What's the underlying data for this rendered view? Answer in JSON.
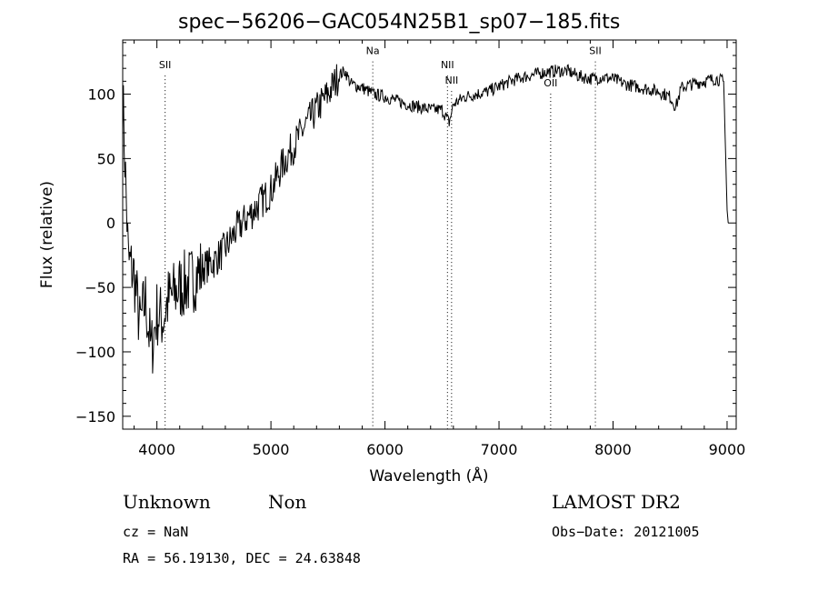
{
  "chart_data": {
    "type": "line",
    "title": "spec−56206−GAC054N25B1_sp07−185.fits",
    "xlabel": "Wavelength (Å)",
    "ylabel": "Flux (relative)",
    "xlim": [
      3700,
      9080
    ],
    "ylim": [
      -160,
      142
    ],
    "xticks": [
      4000,
      5000,
      6000,
      7000,
      8000,
      9000
    ],
    "yticks": [
      -150,
      -100,
      -50,
      0,
      50,
      100
    ],
    "ytick_labels": [
      "−150",
      "−100",
      "−50",
      "0",
      "50",
      "100"
    ],
    "grid": false,
    "series": [
      {
        "x": [
          3700,
          3750,
          3800,
          3850,
          3900,
          3950,
          4000,
          4050,
          4100,
          4200,
          4300,
          4400,
          4500,
          4600,
          4700,
          4800,
          4900,
          5000,
          5100,
          5200,
          5300,
          5400,
          5500,
          5600,
          5650,
          5700,
          5800,
          5900,
          6000,
          6100,
          6200,
          6300,
          6400,
          6500,
          6563,
          6600,
          6700,
          6800,
          6900,
          7000,
          7100,
          7200,
          7300,
          7400,
          7500,
          7600,
          7700,
          7800,
          7900,
          8000,
          8100,
          8200,
          8300,
          8400,
          8500,
          8550,
          8600,
          8700,
          8800,
          8900,
          8970,
          9000,
          9010
        ],
        "y": [
          100,
          -30,
          -40,
          -80,
          -60,
          -100,
          -70,
          -75,
          -60,
          -50,
          -45,
          -35,
          -30,
          -20,
          -5,
          5,
          15,
          25,
          45,
          60,
          75,
          88,
          100,
          115,
          118,
          108,
          105,
          100,
          98,
          95,
          92,
          90,
          88,
          88,
          78,
          92,
          98,
          100,
          102,
          106,
          110,
          113,
          115,
          117,
          118,
          118,
          114,
          112,
          113,
          112,
          108,
          106,
          104,
          102,
          98,
          90,
          105,
          108,
          110,
          112,
          110,
          10,
          0
        ]
      }
    ],
    "lines": [
      {
        "label": "SII",
        "x": 4072,
        "label_y": 120
      },
      {
        "label": "Na",
        "x": 5893,
        "label_y": 131
      },
      {
        "label": "NII",
        "x": 6548,
        "label_y": 120
      },
      {
        "label": "NII",
        "x": 6584,
        "label_y": 108
      },
      {
        "label": "OII",
        "x": 7453,
        "label_y": 106
      },
      {
        "label": "SII",
        "x": 7845,
        "label_y": 131
      }
    ]
  },
  "footer": {
    "object_class": "Unknown",
    "subclass": "Non",
    "survey": "LAMOST DR2",
    "redshift": "cz = NaN",
    "obs_date": "Obs−Date: 20121005",
    "coords": "RA =  56.19130, DEC =  24.63848"
  }
}
